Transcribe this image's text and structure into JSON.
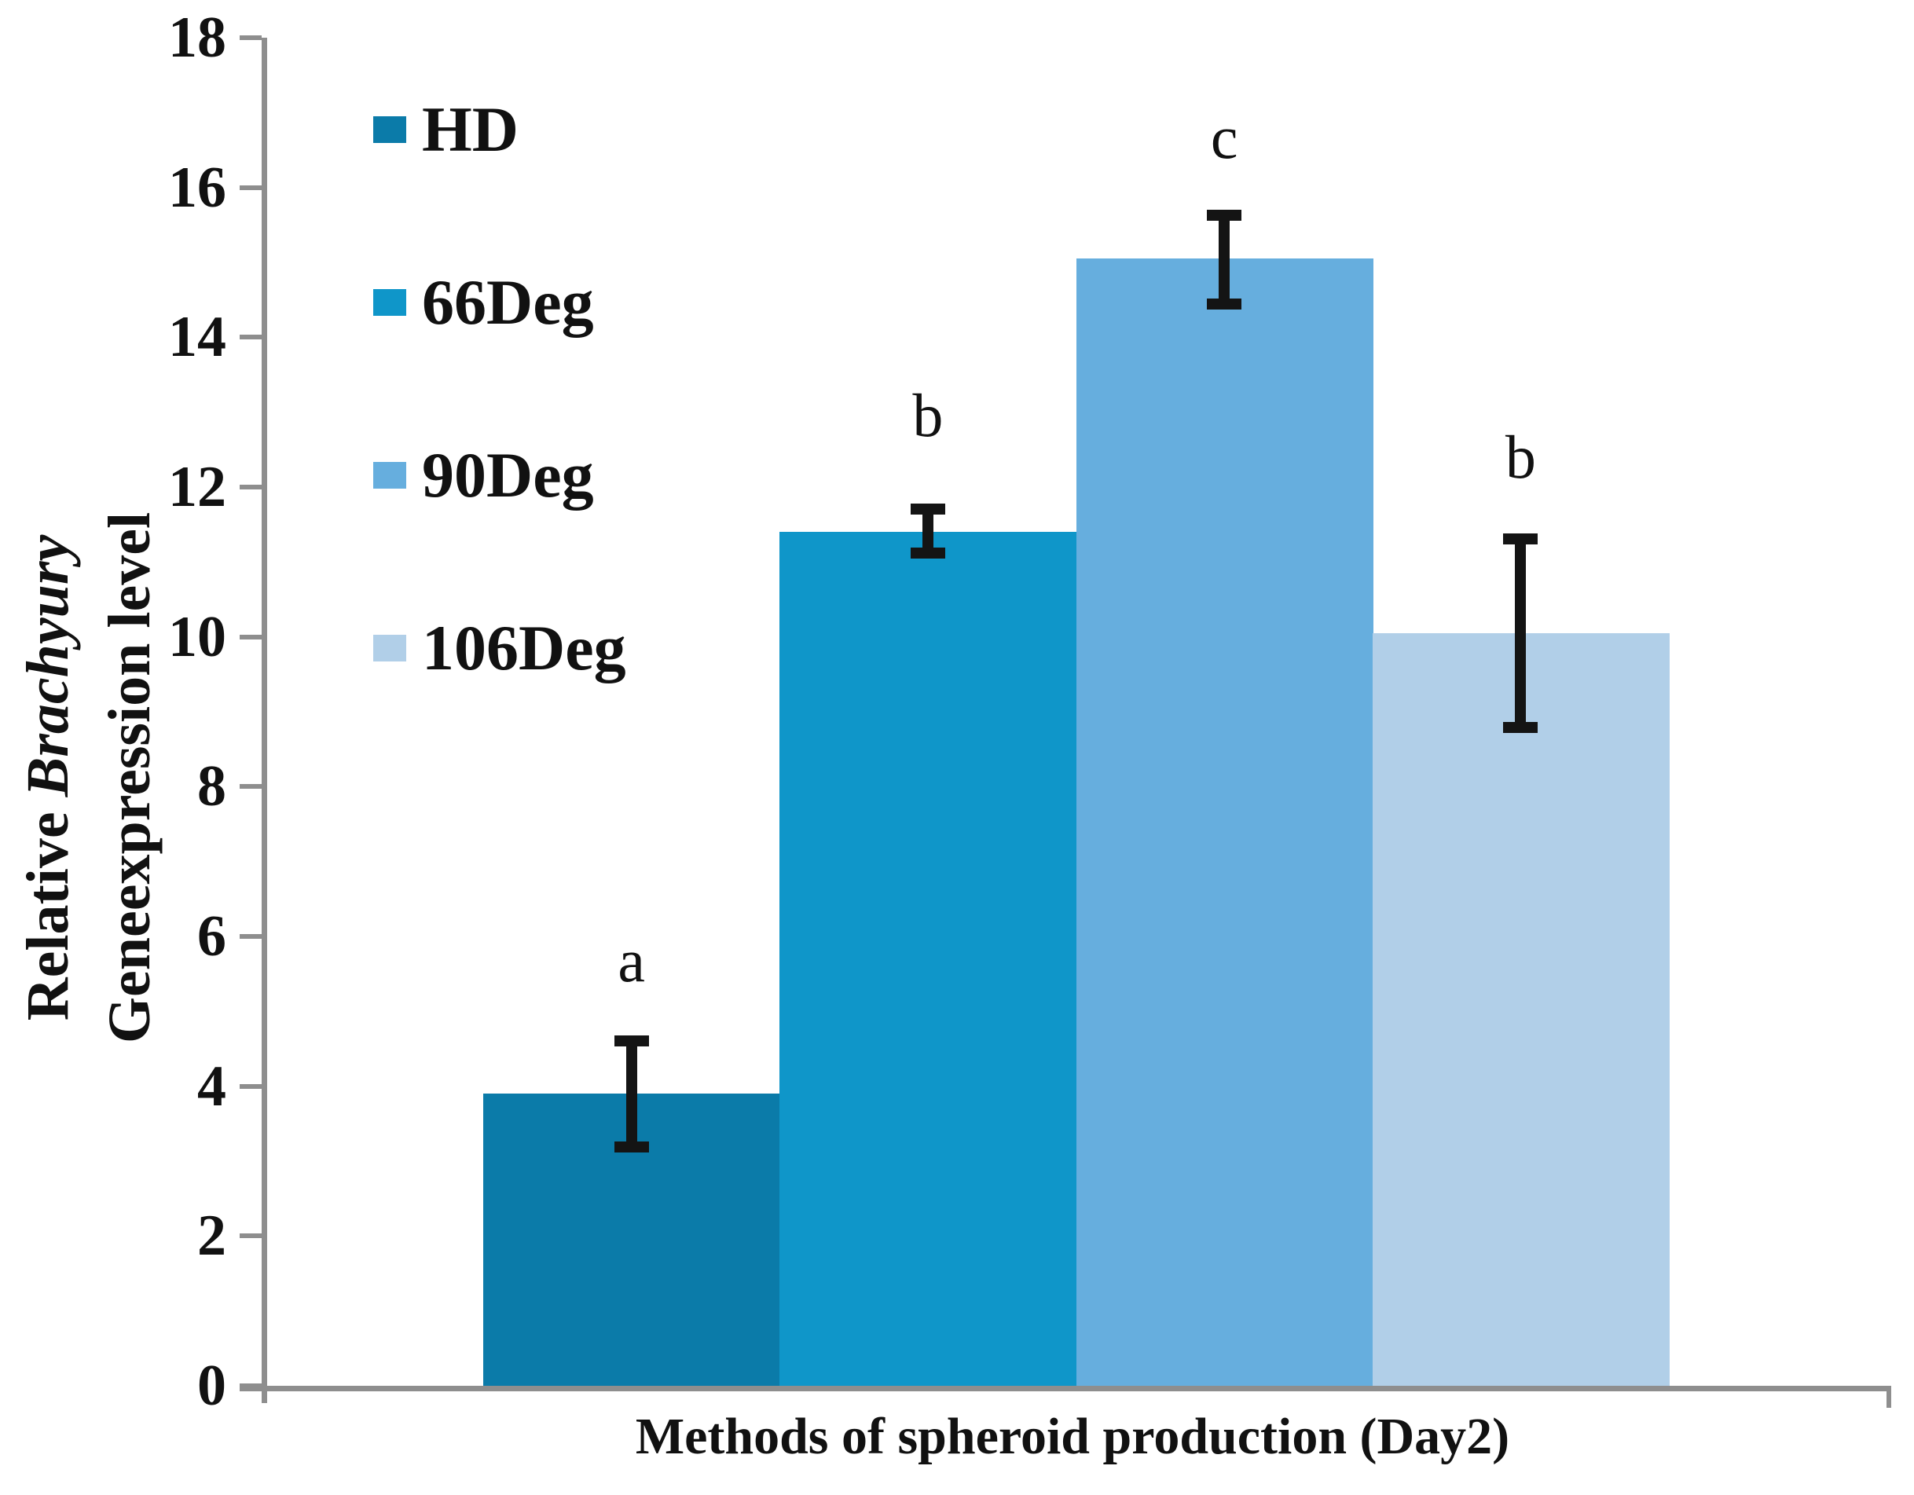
{
  "chart_data": {
    "type": "bar",
    "title": "",
    "xlabel": "Methods of spheroid production (Day2)",
    "ylabel_line1_regular": "Relative ",
    "ylabel_line1_italic": "Brachyury",
    "ylabel_line2": "Geneexpression level",
    "categories": [
      "HD",
      "66Deg",
      "90Deg",
      "106Deg"
    ],
    "values": [
      3.9,
      11.4,
      15.05,
      10.05
    ],
    "error_plus": [
      0.78,
      0.38,
      0.65,
      1.33
    ],
    "error_minus": [
      0.78,
      0.35,
      0.68,
      1.33
    ],
    "sig_letters": [
      "a",
      "b",
      "c",
      "b"
    ],
    "sig_letter_y": [
      5.67,
      12.95,
      16.67,
      12.4
    ],
    "bar_colors": [
      "#0b7ba9",
      "#0f96c9",
      "#66aede",
      "#b1cfe8"
    ],
    "ylim": [
      0,
      18
    ],
    "ytick_step": 2,
    "yticks": [
      0,
      2,
      4,
      6,
      8,
      10,
      12,
      14,
      16,
      18
    ],
    "grid": "off",
    "legend_position": "upper-left",
    "legend": [
      {
        "label": "HD",
        "color": "#0b7ba9"
      },
      {
        "label": "66Deg",
        "color": "#0f96c9"
      },
      {
        "label": "90Deg",
        "color": "#66aede"
      },
      {
        "label": "106Deg",
        "color": "#b1cfe8"
      }
    ],
    "axis_color": "#8e8e8e",
    "error_bar_color": "#141414"
  }
}
